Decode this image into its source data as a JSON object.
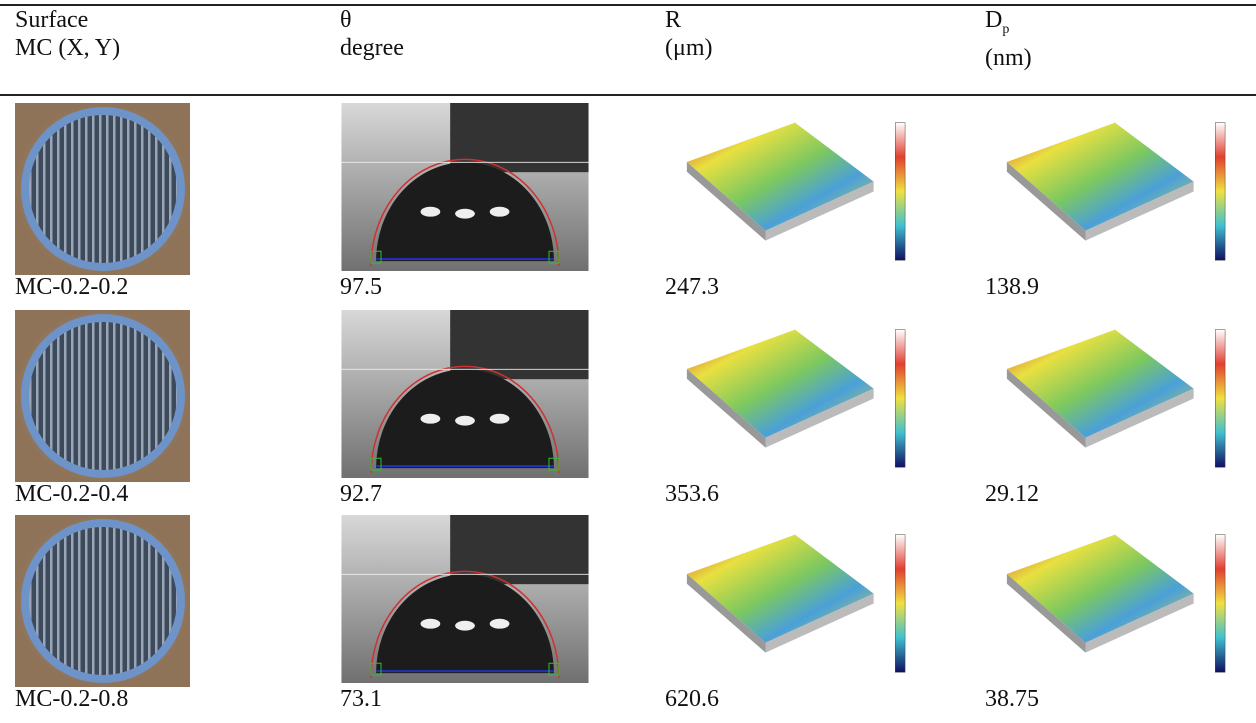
{
  "header": {
    "columns": [
      {
        "line1": "Surface",
        "line2": "MC (X, Y)"
      },
      {
        "line1": "θ",
        "line2": "degree"
      },
      {
        "line1": "R",
        "line2": "(μm)"
      },
      {
        "line1": "D",
        "line1_sub": "p",
        "line2": "(nm)"
      }
    ]
  },
  "table": {
    "rows": [
      [
        "MC-0.2-0.2",
        "97.5",
        "247.3",
        "138.9"
      ],
      [
        "MC-0.2-0.4",
        "92.7",
        "353.6",
        "29.12"
      ],
      [
        "MC-0.2-0.8",
        "73.1",
        "620.6",
        "38.75"
      ]
    ]
  }
}
